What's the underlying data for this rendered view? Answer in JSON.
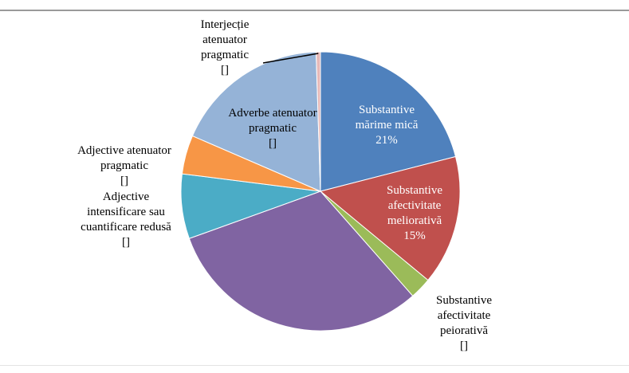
{
  "chart_data": {
    "type": "pie",
    "title": "",
    "slices": [
      {
        "name": "Substantive mărime mică",
        "value": 21,
        "color": "#4f81bd",
        "label_lines": [
          "Substantive",
          "mărime mică",
          "21%"
        ],
        "label_color": "#ffffff"
      },
      {
        "name": "Substantive afectivitate meliorativă",
        "value": 15,
        "color": "#c0504d",
        "label_lines": [
          "Substantive",
          "afectivitate",
          "meliorativă",
          "15%"
        ],
        "label_color": "#ffffff"
      },
      {
        "name": "Substantive afectivitate peiorativă",
        "value": 2.5,
        "color": "#9bbb59",
        "label_lines": [
          "Substantive",
          "afectivitate",
          "peiorativă",
          "[]"
        ],
        "label_color": "#000000"
      },
      {
        "name": "",
        "value": 31,
        "color": "#8064a2",
        "label_lines": [],
        "label_color": "#000000"
      },
      {
        "name": "Adjective intensificare sau cuantificare redusă",
        "value": 7.5,
        "color": "#4bacc6",
        "label_lines": [
          "Adjective",
          "intensificare sau",
          "cuantificare redusă",
          "[]"
        ],
        "label_color": "#000000"
      },
      {
        "name": "Adjective atenuator pragmatic",
        "value": 4.5,
        "color": "#f79646",
        "label_lines": [
          "Adjective atenuator",
          "pragmatic",
          "[]"
        ],
        "label_color": "#000000"
      },
      {
        "name": "Adverbe atenuator pragmatic",
        "value": 18,
        "color": "#95b3d7",
        "label_lines": [
          "Adverbe atenuator",
          "pragmatic",
          "[]"
        ],
        "label_color": "#000000"
      },
      {
        "name": "Interjecție atenuator pragmatic",
        "value": 0.5,
        "color": "#e6b9b8",
        "label_lines": [
          "Interjecție",
          "atenuator",
          "pragmatic",
          "[]"
        ],
        "label_color": "#000000"
      }
    ],
    "legend": "none",
    "start": "12 o'clock, clockwise"
  }
}
